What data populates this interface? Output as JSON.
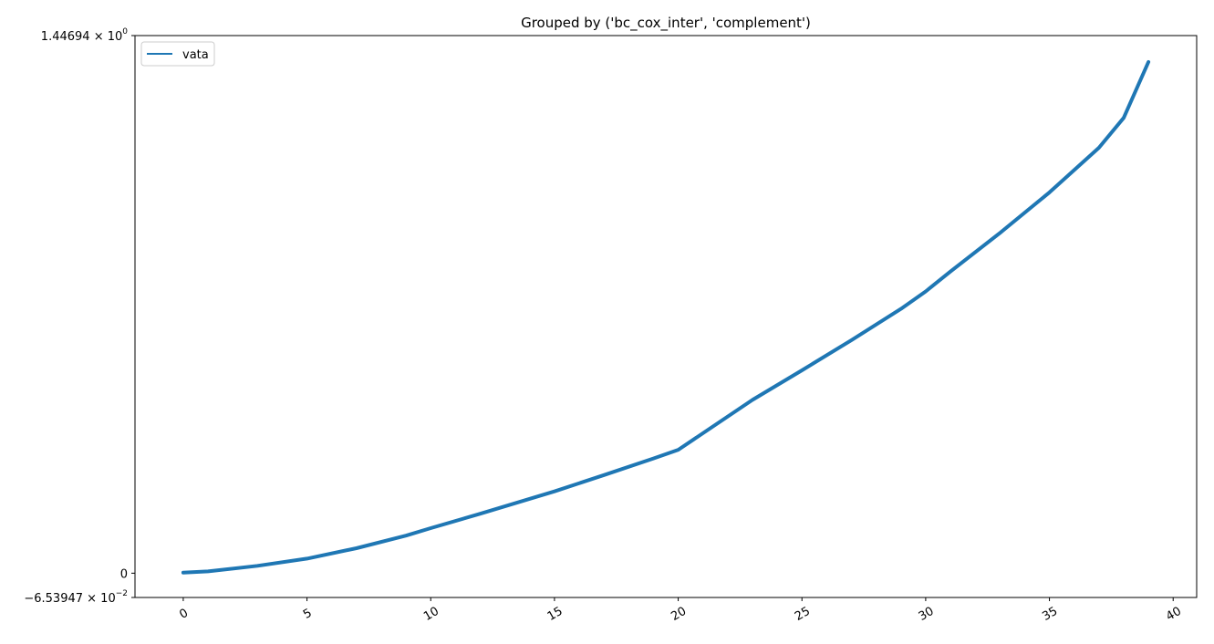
{
  "chart_data": {
    "type": "line",
    "title": "Grouped by ('bc_cox_inter', 'complement')",
    "xlabel": "",
    "ylabel": "",
    "xlim": [
      -1.95,
      40.95
    ],
    "ylim": [
      -0.0653947,
      1.44694
    ],
    "x_ticks": [
      0,
      5,
      10,
      15,
      20,
      25,
      30,
      35,
      40
    ],
    "y_ticks": [
      {
        "value": 1.44694,
        "mantissa": "1.44694",
        "exponent": "0"
      },
      {
        "value": 0,
        "mantissa": "0",
        "exponent": ""
      },
      {
        "value": -0.0653947,
        "mantissa": "−6.53947",
        "exponent": "−2"
      }
    ],
    "grid": false,
    "legend": {
      "placement": "upper-left",
      "entries": [
        "vata"
      ]
    },
    "series": [
      {
        "name": "vata",
        "color": "#1f77b4",
        "x": [
          0,
          1,
          3,
          5,
          7,
          9,
          10,
          12,
          15,
          17,
          19,
          20,
          23,
          25,
          27,
          29,
          30,
          31,
          33,
          35,
          37,
          38,
          39
        ],
        "y": [
          0.0015,
          0.0048,
          0.0197,
          0.0393,
          0.0672,
          0.101,
          0.1213,
          0.16,
          0.2202,
          0.2641,
          0.3087,
          0.3322,
          0.4663,
          0.546,
          0.6272,
          0.7114,
          0.7584,
          0.8117,
          0.9157,
          1.025,
          1.145,
          1.2256,
          1.3757
        ]
      }
    ]
  }
}
